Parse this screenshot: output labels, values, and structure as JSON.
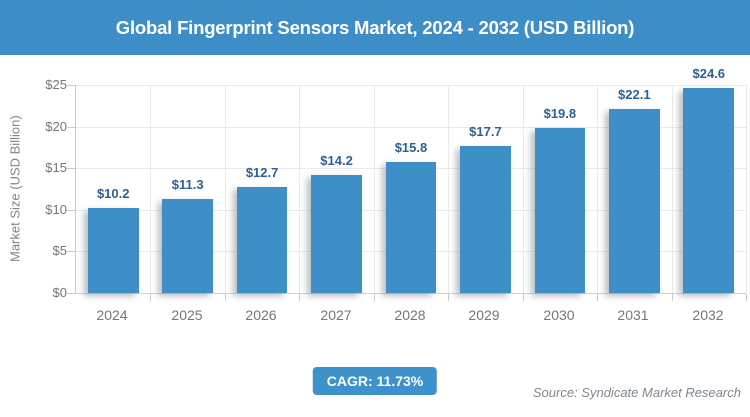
{
  "header": {
    "title": "Global Fingerprint Sensors Market, 2024 - 2032 (USD Billion)"
  },
  "footer": {
    "cagr_label": "CAGR: 11.73%",
    "source": "Source: Syndicate Market Research"
  },
  "colors": {
    "banner_blue": "#3d8dc6",
    "bar_blue": "#3e8fc8",
    "badge_blue": "#3e92cb",
    "value_label_blue": "#2e6095",
    "axis_text_gray": "#767676",
    "gridline_gray": "#e8eaec",
    "axis_line_gray": "#c6cbd0"
  },
  "chart_data": {
    "type": "bar",
    "title": "Global Fingerprint Sensors Market, 2024 - 2032 (USD Billion)",
    "categories": [
      "2024",
      "2025",
      "2026",
      "2027",
      "2028",
      "2029",
      "2030",
      "2031",
      "2032"
    ],
    "values": [
      10.2,
      11.3,
      12.7,
      14.2,
      15.8,
      17.7,
      19.8,
      22.1,
      24.6
    ],
    "bar_labels": [
      "$10.2",
      "$11.3",
      "$12.7",
      "$14.2",
      "$15.8",
      "$17.7",
      "$19.8",
      "$22.1",
      "$24.6"
    ],
    "xlabel": "",
    "ylabel": "Market Size (USD Billion)",
    "ylim": [
      0,
      25
    ],
    "ytick_labels": [
      "$0",
      "$5",
      "$10",
      "$15",
      "$20",
      "$25"
    ],
    "grid": true,
    "legend": "none",
    "annotations": {
      "cagr": "CAGR: 11.73%",
      "source": "Source: Syndicate Market Research"
    }
  }
}
